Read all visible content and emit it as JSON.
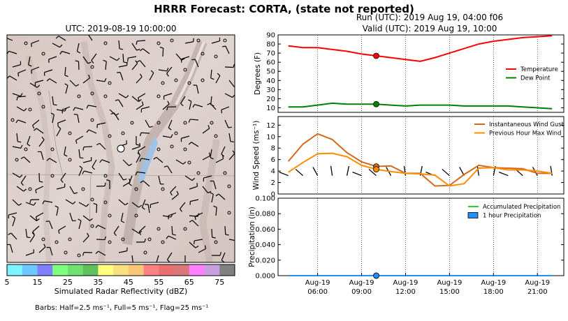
{
  "header": {
    "title": "HRRR Forecast: CORTA, (state not reported)",
    "run": "Run (UTC): 2019 Aug 19, 04:00 f06",
    "valid": "Valid (UTC): 2019 Aug 19, 10:00"
  },
  "map": {
    "title": "UTC: 2019-08-19 10:00:00",
    "colorbar_label": "Simulated Radar Reflectivity (dBZ)",
    "colorbar_ticks": [
      "5",
      "15",
      "25",
      "35",
      "45",
      "55",
      "65",
      "75"
    ],
    "colorbar_colors": [
      "#7ff4ff",
      "#6ec8ff",
      "#8080ff",
      "#7fff7f",
      "#70e070",
      "#60c060",
      "#ffff80",
      "#f8e080",
      "#f8c878",
      "#ff8080",
      "#e87070",
      "#d87878",
      "#ff80ff",
      "#c8a0e0",
      "#808080"
    ],
    "footer": "Barbs: Half=2.5 ms⁻¹, Full=5 ms⁻¹, Flag=25 ms⁻¹"
  },
  "chart_data": [
    {
      "type": "line",
      "ylabel": "Degrees (F)",
      "ylim": [
        5,
        90
      ],
      "yticks": [
        10,
        20,
        30,
        40,
        50,
        60,
        70,
        80,
        90
      ],
      "x": [
        4,
        5,
        6,
        7,
        8,
        9,
        10,
        11,
        12,
        13,
        14,
        15,
        16,
        17,
        18,
        19,
        20,
        21,
        22
      ],
      "series": [
        {
          "name": "Temperature",
          "color": "#ff0000",
          "values": [
            78,
            76,
            76,
            74,
            72,
            69,
            67,
            65,
            63,
            61,
            65,
            70,
            75,
            80,
            83,
            85,
            87,
            88,
            89
          ]
        },
        {
          "name": "Dew Point",
          "color": "#008000",
          "values": [
            11,
            11,
            13,
            15,
            14,
            14,
            14,
            13,
            12,
            13,
            13,
            13,
            12,
            12,
            12,
            12,
            11,
            10,
            9
          ]
        }
      ],
      "legend": "right",
      "marker_x": 10
    },
    {
      "type": "line",
      "ylabel": "Wind Speed (ms⁻¹)",
      "ylim": [
        0,
        13.5
      ],
      "yticks": [
        0,
        2,
        4,
        6,
        8,
        10,
        12
      ],
      "x": [
        4,
        5,
        6,
        7,
        8,
        9,
        10,
        11,
        12,
        13,
        14,
        15,
        16,
        17,
        18,
        19,
        20,
        21,
        22
      ],
      "series": [
        {
          "name": "Instantaneous Wind Gust",
          "color": "#d2691e",
          "values": [
            5.7,
            8.7,
            10.5,
            9.5,
            7.2,
            5.6,
            4.8,
            4.9,
            3.6,
            3.6,
            1.4,
            1.5,
            3.4,
            5.0,
            4.6,
            4.5,
            4.4,
            3.6,
            3.6
          ]
        },
        {
          "name": "Previous Hour Max Wind",
          "color": "#ff8c00",
          "values": [
            3.8,
            5.5,
            7.0,
            7.1,
            6.5,
            5.0,
            4.3,
            3.9,
            3.6,
            3.5,
            3.3,
            1.4,
            1.8,
            4.5,
            4.6,
            4.2,
            4.2,
            4.0,
            3.6
          ]
        }
      ],
      "legend": "top-right",
      "marker_x": 10
    },
    {
      "type": "line",
      "ylabel": "Precipitation (in)",
      "ylim": [
        0,
        0.1
      ],
      "yticks": [
        "0.000",
        "0.020",
        "0.040",
        "0.060",
        "0.080",
        "0.100"
      ],
      "x": [
        4,
        5,
        6,
        7,
        8,
        9,
        10,
        11,
        12,
        13,
        14,
        15,
        16,
        17,
        18,
        19,
        20,
        21,
        22
      ],
      "xtick_values": [
        6,
        9,
        12,
        15,
        18,
        21
      ],
      "xticklabels": [
        [
          "Aug-19",
          "06:00"
        ],
        [
          "Aug-19",
          "09:00"
        ],
        [
          "Aug-19",
          "12:00"
        ],
        [
          "Aug-19",
          "15:00"
        ],
        [
          "Aug-19",
          "18:00"
        ],
        [
          "Aug-19",
          "21:00"
        ]
      ],
      "series": [
        {
          "name": "Accumulated Precipitation",
          "color": "#33cc33",
          "values": [
            0,
            0,
            0,
            0,
            0,
            0,
            0,
            0,
            0,
            0,
            0,
            0,
            0,
            0,
            0,
            0,
            0,
            0,
            0
          ]
        },
        {
          "name": "1 hour Precipitation",
          "color": "#1e90ff",
          "values": [
            0,
            0,
            0,
            0,
            0,
            0,
            0,
            0,
            0,
            0,
            0,
            0,
            0,
            0,
            0,
            0,
            0,
            0,
            0
          ]
        }
      ],
      "legend": "top-right",
      "marker_x": 10
    }
  ]
}
